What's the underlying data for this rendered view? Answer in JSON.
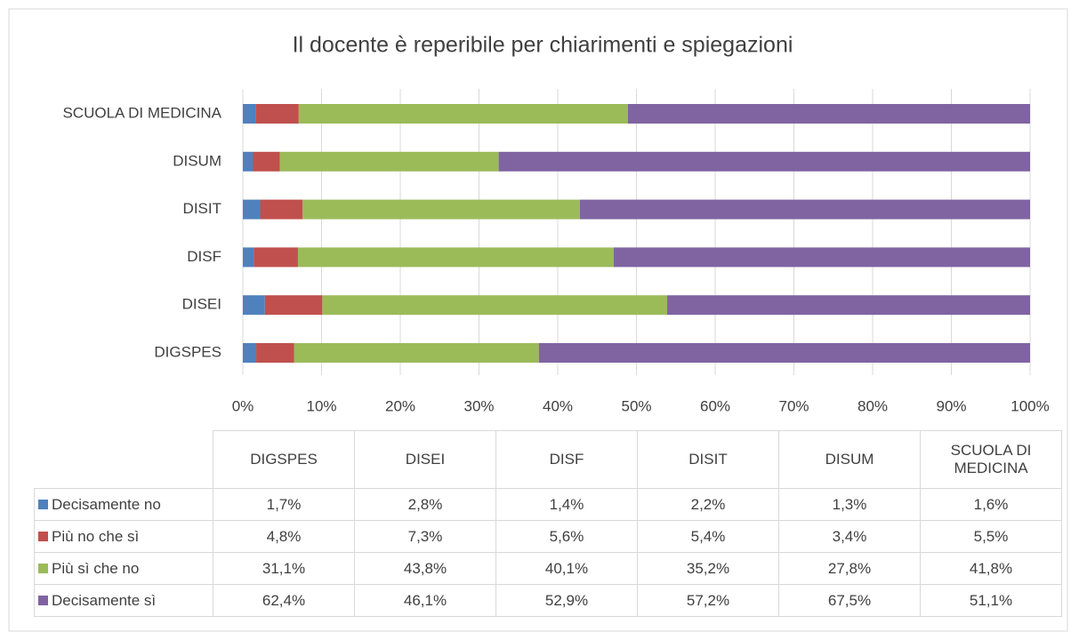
{
  "chart_data": {
    "type": "stacked-bar-horizontal",
    "title": "Il docente è reperibile per chiarimenti e spiegazioni",
    "categories": [
      "DIGSPES",
      "DISEI",
      "DISF",
      "DISIT",
      "DISUM",
      "SCUOLA DI MEDICINA"
    ],
    "series": [
      {
        "name": "Decisamente no",
        "color": "#4f81bd",
        "values": [
          1.7,
          2.8,
          1.4,
          2.2,
          1.3,
          1.6
        ],
        "value_labels": [
          "1,7%",
          "2,8%",
          "1,4%",
          "2,2%",
          "1,3%",
          "1,6%"
        ]
      },
      {
        "name": "Più no che sì",
        "color": "#c0504d",
        "values": [
          4.8,
          7.3,
          5.6,
          5.4,
          3.4,
          5.5
        ],
        "value_labels": [
          "4,8%",
          "7,3%",
          "5,6%",
          "5,4%",
          "3,4%",
          "5,5%"
        ]
      },
      {
        "name": "Più sì che no",
        "color": "#9bbb59",
        "values": [
          31.1,
          43.8,
          40.1,
          35.2,
          27.8,
          41.8
        ],
        "value_labels": [
          "31,1%",
          "43,8%",
          "40,1%",
          "35,2%",
          "27,8%",
          "41,8%"
        ]
      },
      {
        "name": "Decisamente sì",
        "color": "#8064a2",
        "values": [
          62.4,
          46.1,
          52.9,
          57.2,
          67.5,
          51.1
        ],
        "value_labels": [
          "62,4%",
          "46,1%",
          "52,9%",
          "57,2%",
          "67,5%",
          "51,1%"
        ]
      }
    ],
    "xlim": [
      0,
      100
    ],
    "xticks": [
      {
        "value": 0,
        "label": "0%"
      },
      {
        "value": 10,
        "label": "10%"
      },
      {
        "value": 20,
        "label": "20%"
      },
      {
        "value": 30,
        "label": "30%"
      },
      {
        "value": 40,
        "label": "40%"
      },
      {
        "value": 50,
        "label": "50%"
      },
      {
        "value": 60,
        "label": "60%"
      },
      {
        "value": 70,
        "label": "70%"
      },
      {
        "value": 80,
        "label": "80%"
      },
      {
        "value": 90,
        "label": "90%"
      },
      {
        "value": 100,
        "label": "100%"
      }
    ],
    "grid": true
  }
}
